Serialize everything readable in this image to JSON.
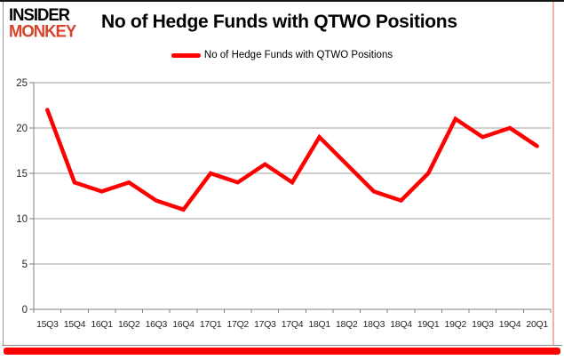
{
  "logo": {
    "line1": "INSIDER",
    "line2": "MONKEY",
    "line1_color": "#000000",
    "line2_color": "#d8432c"
  },
  "accent": {
    "bottom_bar_color": "#ff0000"
  },
  "chart_data": {
    "type": "line",
    "title": "No of Hedge Funds with QTWO Positions",
    "legend_label": "No of Hedge Funds with QTWO Positions",
    "legend_position": "top",
    "categories": [
      "15Q3",
      "15Q4",
      "16Q1",
      "16Q2",
      "16Q3",
      "16Q4",
      "17Q1",
      "17Q2",
      "17Q3",
      "17Q4",
      "18Q1",
      "18Q2",
      "18Q3",
      "18Q4",
      "19Q1",
      "19Q2",
      "19Q3",
      "19Q4",
      "20Q1"
    ],
    "values": [
      22,
      14,
      13,
      14,
      12,
      11,
      15,
      14,
      16,
      14,
      19,
      16,
      13,
      12,
      15,
      21,
      19,
      20,
      18
    ],
    "series": [
      {
        "name": "No of Hedge Funds with QTWO Positions",
        "values": [
          22,
          14,
          13,
          14,
          12,
          11,
          15,
          14,
          16,
          14,
          19,
          16,
          13,
          12,
          15,
          21,
          19,
          20,
          18
        ]
      }
    ],
    "xlabel": "",
    "ylabel": "",
    "ylim": [
      0,
      25
    ],
    "ytick_step": 5,
    "grid": true,
    "line_color": "#ff0000",
    "gridline_color": "#a0a0a0",
    "axis_color": "#7f7f7f"
  }
}
